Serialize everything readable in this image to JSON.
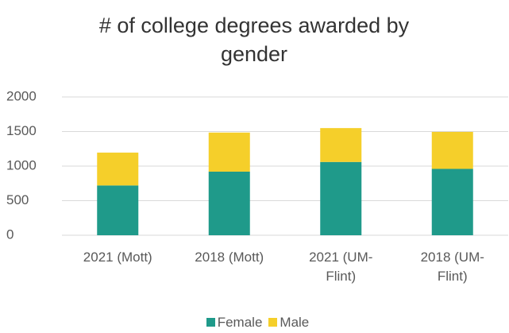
{
  "chart_data": {
    "type": "stacked_bar",
    "title": "# of college degrees awarded by gender",
    "categories": [
      "2021 (Mott)",
      "2018 (Mott)",
      "2021 (UM-Flint)",
      "2018 (UM-Flint)"
    ],
    "series": [
      {
        "name": "Female",
        "color": "#1f9a8a",
        "values": [
          720,
          920,
          1060,
          960
        ]
      },
      {
        "name": "Male",
        "color": "#f5cf2a",
        "values": [
          475,
          565,
          490,
          535
        ]
      }
    ],
    "ylim": [
      0,
      2000
    ],
    "yticks": [
      0,
      500,
      1000,
      1500,
      2000
    ],
    "grid": true,
    "legend": "bottom"
  }
}
